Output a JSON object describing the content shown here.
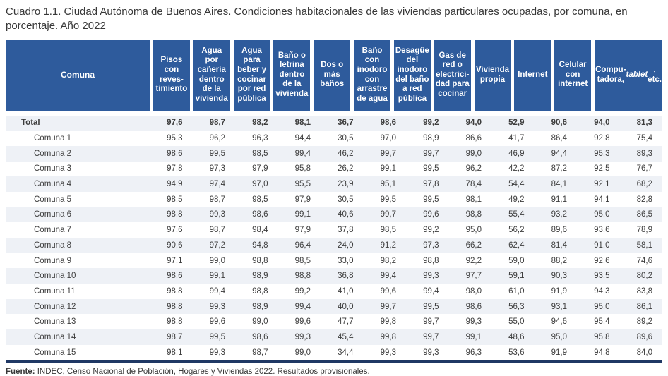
{
  "title": "Cuadro 1.1. Ciudad Autónoma de Buenos Aires. Condiciones habitacionales de las viviendas particulares ocupadas, por comuna, en porcentaje. Año 2022",
  "colors": {
    "header_bg": "#2e5b9c",
    "row_shaded": "#eef1f6",
    "table_bottom_border": "#1f3864",
    "header_text": "#ffffff",
    "body_text": "#3d3d3d"
  },
  "table": {
    "corner_label": "Comuna",
    "headers": [
      "Pisos\ncon\nreves-\ntimiento",
      "Agua por\ncañería\ndentro\nde la\nvivienda",
      "Agua\npara\nbeber y\ncocinar\npor red\npública",
      "Baño o\nletrina\ndentro\nde la\nvivienda",
      "Dos o\nmás\nbaños",
      "Baño\ncon\ninodoro\ncon\narrastre\nde agua",
      "Desagüe\ndel\ninodoro\ndel baño\na red\npública",
      "Gas de\nred o\nelectrici-\ndad para\ncocinar",
      "Vivienda\npropia",
      "Internet",
      "Celular\ncon\ninternet"
    ],
    "computer_header": {
      "prefix": "Compu-\ntadora,\n",
      "italic": "tablet",
      "suffix": " ,\netc."
    },
    "rows": [
      {
        "label": "Total",
        "values": [
          "97,6",
          "98,7",
          "98,2",
          "98,1",
          "36,7",
          "98,6",
          "99,2",
          "94,0",
          "52,9",
          "90,6",
          "94,0",
          "81,3"
        ]
      },
      {
        "label": "Comuna 1",
        "values": [
          "95,3",
          "96,2",
          "96,3",
          "94,4",
          "30,5",
          "97,0",
          "98,9",
          "86,6",
          "41,7",
          "86,4",
          "92,8",
          "75,4"
        ]
      },
      {
        "label": "Comuna 2",
        "values": [
          "98,6",
          "99,5",
          "98,5",
          "99,4",
          "46,2",
          "99,7",
          "99,7",
          "99,0",
          "46,9",
          "94,4",
          "95,3",
          "89,3"
        ]
      },
      {
        "label": "Comuna 3",
        "values": [
          "97,8",
          "97,3",
          "97,9",
          "95,8",
          "26,2",
          "99,1",
          "99,5",
          "96,2",
          "42,2",
          "87,2",
          "92,5",
          "76,7"
        ]
      },
      {
        "label": "Comuna 4",
        "values": [
          "94,9",
          "97,4",
          "97,0",
          "95,5",
          "23,9",
          "95,1",
          "97,8",
          "78,4",
          "54,4",
          "84,1",
          "92,1",
          "68,2"
        ]
      },
      {
        "label": "Comuna 5",
        "values": [
          "98,5",
          "98,7",
          "98,5",
          "97,9",
          "30,5",
          "99,5",
          "99,5",
          "98,1",
          "49,2",
          "91,1",
          "94,1",
          "82,8"
        ]
      },
      {
        "label": "Comuna 6",
        "values": [
          "98,8",
          "99,3",
          "98,6",
          "99,1",
          "40,6",
          "99,7",
          "99,6",
          "98,8",
          "55,4",
          "93,2",
          "95,0",
          "86,5"
        ]
      },
      {
        "label": "Comuna 7",
        "values": [
          "97,6",
          "98,7",
          "98,4",
          "97,9",
          "37,8",
          "98,5",
          "99,2",
          "95,0",
          "56,2",
          "89,6",
          "93,6",
          "78,9"
        ]
      },
      {
        "label": "Comuna 8",
        "values": [
          "90,6",
          "97,2",
          "94,8",
          "96,4",
          "24,0",
          "91,2",
          "97,3",
          "66,2",
          "62,4",
          "81,4",
          "91,0",
          "58,1"
        ]
      },
      {
        "label": "Comuna 9",
        "values": [
          "97,1",
          "99,0",
          "98,8",
          "98,5",
          "33,0",
          "98,2",
          "98,8",
          "92,2",
          "59,0",
          "88,2",
          "92,6",
          "74,6"
        ]
      },
      {
        "label": "Comuna 10",
        "values": [
          "98,6",
          "99,1",
          "98,9",
          "98,8",
          "36,8",
          "99,4",
          "99,3",
          "97,7",
          "59,1",
          "90,3",
          "93,5",
          "80,2"
        ]
      },
      {
        "label": "Comuna 11",
        "values": [
          "98,8",
          "99,4",
          "98,8",
          "99,2",
          "41,0",
          "99,6",
          "99,4",
          "98,0",
          "61,0",
          "91,9",
          "94,3",
          "83,8"
        ]
      },
      {
        "label": "Comuna 12",
        "values": [
          "98,8",
          "99,3",
          "98,9",
          "99,4",
          "40,0",
          "99,7",
          "99,5",
          "98,6",
          "56,3",
          "93,1",
          "95,0",
          "86,1"
        ]
      },
      {
        "label": "Comuna 13",
        "values": [
          "98,8",
          "99,6",
          "99,0",
          "99,6",
          "47,7",
          "99,8",
          "99,7",
          "99,3",
          "55,0",
          "94,6",
          "95,4",
          "89,2"
        ]
      },
      {
        "label": "Comuna 14",
        "values": [
          "98,7",
          "99,5",
          "98,6",
          "99,3",
          "45,4",
          "99,8",
          "99,7",
          "99,1",
          "48,6",
          "95,0",
          "95,8",
          "89,6"
        ]
      },
      {
        "label": "Comuna 15",
        "values": [
          "98,1",
          "99,3",
          "98,7",
          "99,0",
          "34,4",
          "99,3",
          "99,3",
          "96,3",
          "53,6",
          "91,9",
          "94,8",
          "84,0"
        ]
      }
    ]
  },
  "footer": {
    "source_label": "Fuente:",
    "source_text": " INDEC, Censo Nacional de Población, Hogares y Viviendas 2022. Resultados provisionales."
  }
}
